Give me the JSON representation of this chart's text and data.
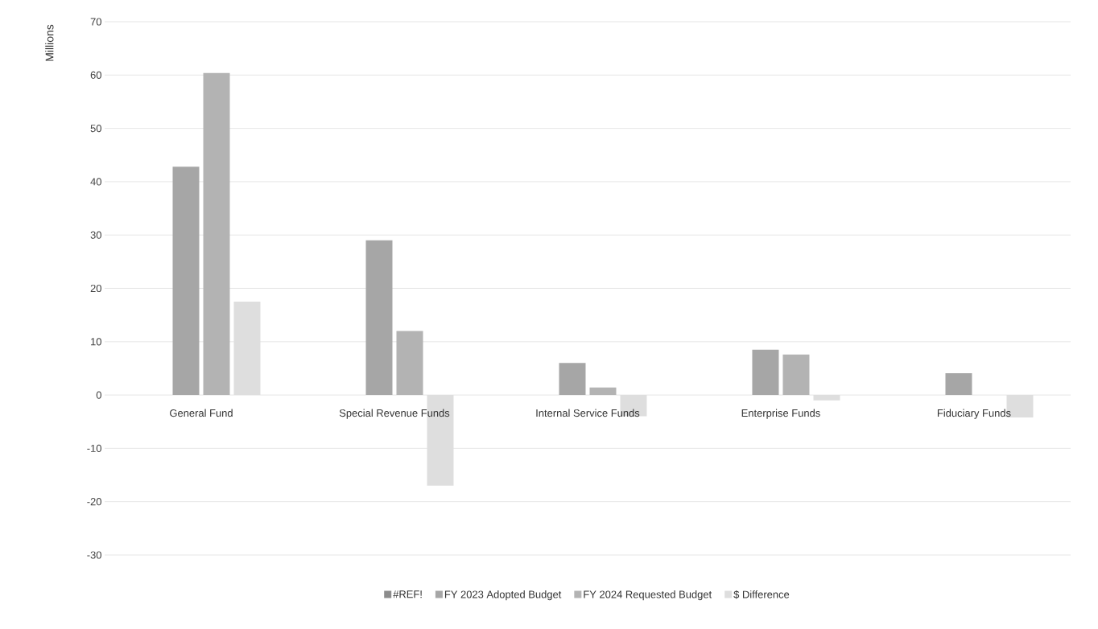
{
  "chart_data": {
    "type": "bar",
    "ylabel": "Millions",
    "categories": [
      "General Fund",
      "Special Revenue Funds",
      "Internal Service Funds",
      "Enterprise Funds",
      "Fiduciary Funds"
    ],
    "series": [
      {
        "name": "#REF!",
        "color": "#8c8c8c",
        "values": [
          null,
          null,
          null,
          null,
          null
        ]
      },
      {
        "name": "FY 2023 Adopted Budget",
        "color": "#a6a6a6",
        "values": [
          42.8,
          29,
          6,
          8.5,
          4.1
        ]
      },
      {
        "name": "FY 2024 Requested Budget",
        "color": "#b3b3b3",
        "values": [
          60.4,
          12,
          1.4,
          7.6,
          0
        ]
      },
      {
        "name": "$ Difference",
        "color": "#dedede",
        "values": [
          17.5,
          -17,
          -4,
          -1,
          -4.2
        ]
      }
    ],
    "ylim": [
      -30,
      70
    ],
    "yticks": [
      -30,
      -20,
      -10,
      0,
      10,
      20,
      30,
      40,
      50,
      60,
      70
    ],
    "grid": "y",
    "legend": "bottom"
  }
}
